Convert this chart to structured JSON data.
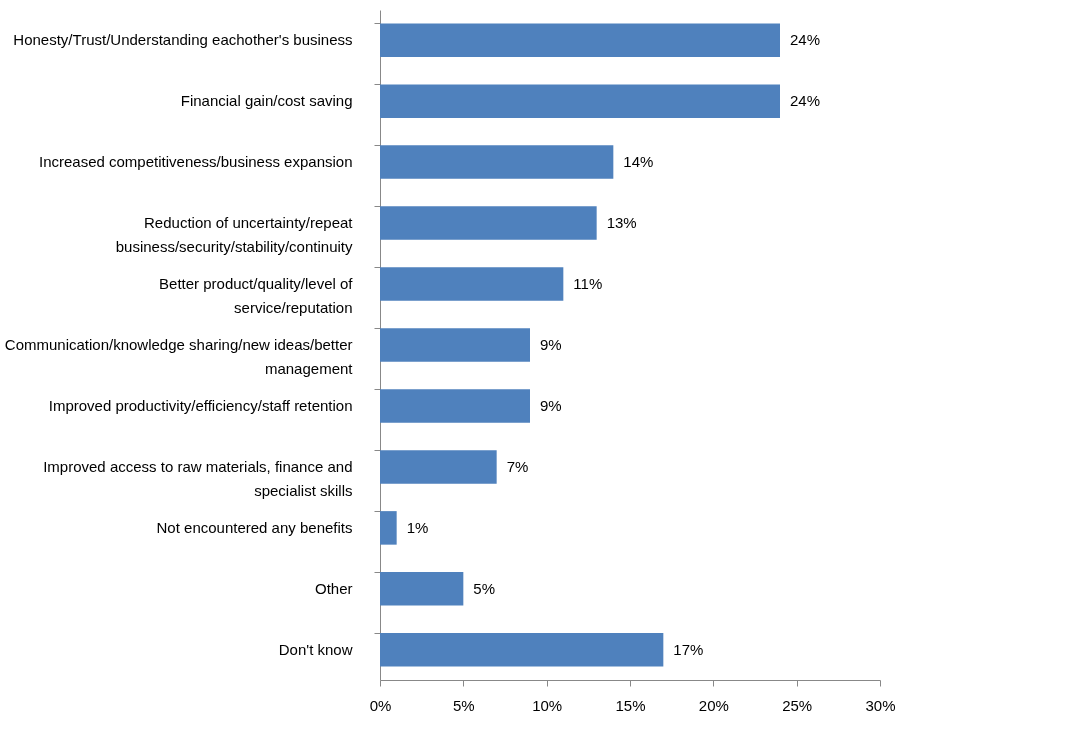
{
  "chart_data": {
    "type": "bar",
    "orientation": "horizontal",
    "categories": [
      "Honesty/Trust/Understanding eachother's business",
      "Financial gain/cost saving",
      "Increased competitiveness/business expansion",
      "Reduction of uncertainty/repeat business/security/stability/continuity",
      "Better product/quality/level of service/reputation",
      "Communication/knowledge sharing/new ideas/better management",
      "Improved productivity/efficiency/staff retention",
      "Improved access to raw materials, finance and specialist skills",
      "Not encountered any benefits",
      "Other",
      "Don't know"
    ],
    "values": [
      24,
      24,
      14,
      13,
      11,
      9,
      9,
      7,
      1,
      5,
      17
    ],
    "value_labels": [
      "24%",
      "24%",
      "14%",
      "13%",
      "11%",
      "9%",
      "9%",
      "7%",
      "1%",
      "5%",
      "17%"
    ],
    "color": "#4f81bd",
    "xlim": [
      0,
      30
    ],
    "xticks": [
      {
        "value": 0,
        "label": "0%"
      },
      {
        "value": 5,
        "label": "5%"
      },
      {
        "value": 10,
        "label": "10%"
      },
      {
        "value": 15,
        "label": "15%"
      },
      {
        "value": 20,
        "label": "20%"
      },
      {
        "value": 25,
        "label": "25%"
      },
      {
        "value": 30,
        "label": "30%"
      }
    ],
    "grid": false
  }
}
